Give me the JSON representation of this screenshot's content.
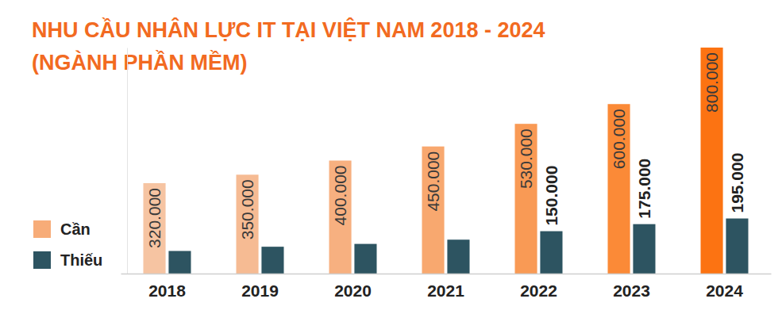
{
  "chart_data": {
    "type": "bar",
    "title": "NHU CẦU NHÂN LỰC IT TẠI VIỆT NAM 2018 - 2024",
    "subtitle": "(NGÀNH PHẦN MỀM)",
    "categories": [
      "2018",
      "2019",
      "2020",
      "2021",
      "2022",
      "2023",
      "2024"
    ],
    "series": [
      {
        "name": "Cần",
        "color": "#f7ac78",
        "colors": [
          "#f6c4a2",
          "#f6bb93",
          "#f7b080",
          "#f8a86f",
          "#f99a55",
          "#fb8a37",
          "#fc7312"
        ],
        "values": [
          320000,
          350000,
          400000,
          450000,
          530000,
          600000,
          800000
        ],
        "value_labels": [
          "320.000",
          "350.000",
          "400.000",
          "450.000",
          "530.000",
          "600.000",
          "800.000"
        ]
      },
      {
        "name": "Thiếu",
        "color": "#2d5461",
        "values": [
          80000,
          95000,
          105000,
          120000,
          150000,
          175000,
          195000
        ],
        "value_labels": [
          null,
          null,
          null,
          null,
          "150.000",
          "175.000",
          "195.000"
        ]
      }
    ],
    "ylim": [
      0,
      800000
    ],
    "yticks": [],
    "tick_labels": "x",
    "data_labels": true,
    "legend": "left",
    "grid": false
  }
}
